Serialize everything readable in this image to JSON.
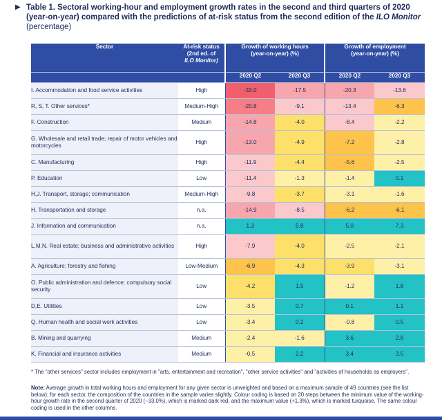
{
  "title": {
    "marker": "▶",
    "text_bold": "Table 1. Sectoral working-hour and employment growth rates in the second and third quarters of 2020 (year-on-year) compared with the predictions of at-risk status from the second edition of the ",
    "text_italic": "ILO Monitor",
    "text_plain": " (percentage)"
  },
  "header": {
    "sector": "Sector",
    "risk_line1": "At-risk status",
    "risk_line2": "(2nd ed. of",
    "risk_line3": "ILO Monitor)",
    "hours_line1": "Growth of working hours",
    "hours_line2": "(year-on-year) (%)",
    "emp_line1": "Growth of employment",
    "emp_line2": "(year-on-year) (%)",
    "q2": "2020 Q2",
    "q3": "2020 Q3"
  },
  "colors": {
    "header_bg": "#2f4da3",
    "dark_red": "#f0606c",
    "red": "#f47f86",
    "pink": "#f8a6ad",
    "light_pink": "#fbc9cc",
    "orange": "#fdc34a",
    "yellow": "#fde06a",
    "light_yellow": "#fff0a8",
    "light_teal": "#bfe9ea",
    "teal": "#23c2c4"
  },
  "rows": [
    {
      "sector": "I. Accommodation and food service activities",
      "risk": "High",
      "h2": "-33.0",
      "h3": "-17.5",
      "e2": "-20.3",
      "e3": "-13.6",
      "c": [
        "#f0606c",
        "#f8a6ad",
        "#f8a6ad",
        "#fbc9cc"
      ]
    },
    {
      "sector": "R, S, T. Other services*",
      "risk": "Medium-High",
      "h2": "-20.8",
      "h3": "-9.1",
      "e2": "-13.4",
      "e3": "-6.3",
      "c": [
        "#f47f86",
        "#fbc9cc",
        "#fbc9cc",
        "#fdc34a"
      ]
    },
    {
      "sector": "F. Construction",
      "risk": "Medium",
      "h2": "-14.8",
      "h3": "-4.0",
      "e2": "-8.4",
      "e3": "-2.2",
      "c": [
        "#f8a6ad",
        "#fde06a",
        "#fbc9cc",
        "#fff0a8"
      ]
    },
    {
      "sector": "G. Wholesale and retail trade; repair of motor vehicles and motorcycles",
      "risk": "High",
      "h2": "-13.0",
      "h3": "-4.9",
      "e2": "-7.2",
      "e3": "-2.8",
      "c": [
        "#f8a6ad",
        "#fde06a",
        "#fdc34a",
        "#fff0a8"
      ]
    },
    {
      "sector": "C. Manufacturing",
      "risk": "High",
      "h2": "-11.9",
      "h3": "-4.4",
      "e2": "-5.6",
      "e3": "-2.5",
      "c": [
        "#fbc9cc",
        "#fde06a",
        "#fdc34a",
        "#fff0a8"
      ]
    },
    {
      "sector": "P. Education",
      "risk": "Low",
      "h2": "-11.4",
      "h3": "-1.3",
      "e2": "-1.4",
      "e3": "0.1",
      "c": [
        "#fbc9cc",
        "#fff0a8",
        "#fff0a8",
        "#23c2c4"
      ]
    },
    {
      "sector": "H,J. Transport, storage; communication",
      "risk": "Medium-High",
      "h2": "-9.8",
      "h3": "-3.7",
      "e2": "-3.1",
      "e3": "-1.6",
      "c": [
        "#fbc9cc",
        "#fde06a",
        "#fff0a8",
        "#fff0a8"
      ]
    },
    {
      "sector": "H. Transportation and storage",
      "risk": "n.a.",
      "h2": "-14.9",
      "h3": "-8.5",
      "e2": "-6.2",
      "e3": "-6.1",
      "c": [
        "#f8a6ad",
        "#fbc9cc",
        "#fdc34a",
        "#fdc34a"
      ]
    },
    {
      "sector": "J. Information and communication",
      "risk": "n.a.",
      "h2": "1.3",
      "h3": "5.8",
      "e2": "5.0",
      "e3": "7.3",
      "c": [
        "#23c2c4",
        "#23c2c4",
        "#23c2c4",
        "#23c2c4"
      ]
    },
    {
      "sector": "L,M,N. Real estate; business and administrative activities",
      "risk": "High",
      "h2": "-7.9",
      "h3": "-4.0",
      "e2": "-2.5",
      "e3": "-2.1",
      "c": [
        "#fbc9cc",
        "#fde06a",
        "#fff0a8",
        "#fff0a8"
      ]
    },
    {
      "sector": "A. Agriculture; forestry and fishing",
      "risk": "Low-Medium",
      "h2": "-6.9",
      "h3": "-4.3",
      "e2": "-3.9",
      "e3": "-3.1",
      "c": [
        "#fdc34a",
        "#fde06a",
        "#fde06a",
        "#fff0a8"
      ]
    },
    {
      "sector": "O. Public administration and defence; compulsory social security",
      "risk": "Low",
      "h2": "-4.2",
      "h3": "1.5",
      "e2": "-1.2",
      "e3": "1.8",
      "c": [
        "#fde06a",
        "#23c2c4",
        "#fff0a8",
        "#23c2c4"
      ]
    },
    {
      "sector": "D,E. Utilities",
      "risk": "Low",
      "h2": "-3.5",
      "h3": "0.7",
      "e2": "0.1",
      "e3": "1.1",
      "c": [
        "#fff0a8",
        "#23c2c4",
        "#23c2c4",
        "#23c2c4"
      ]
    },
    {
      "sector": "Q. Human health and social work activities",
      "risk": "Low",
      "h2": "-3.4",
      "h3": "0.2",
      "e2": "-0.8",
      "e3": "0.5",
      "c": [
        "#fff0a8",
        "#23c2c4",
        "#fff0a8",
        "#23c2c4"
      ]
    },
    {
      "sector": "B. Mining and quarrying",
      "risk": "Medium",
      "h2": "-2.4",
      "h3": "-1.6",
      "e2": "3.6",
      "e3": "2.8",
      "c": [
        "#fff0a8",
        "#fff0a8",
        "#23c2c4",
        "#23c2c4"
      ]
    },
    {
      "sector": "K. Financial and insurance activities",
      "risk": "Medium",
      "h2": "-0.5",
      "h3": "2.2",
      "e2": "3.4",
      "e3": "3.5",
      "c": [
        "#fff0a8",
        "#23c2c4",
        "#23c2c4",
        "#23c2c4"
      ]
    }
  ],
  "footnote": "* The \"other services\" sector includes employment in \"arts, entertainment and recreation\", \"other service activities\" and \"activities of households as employers\".",
  "note_label": "Note:",
  "note_text": " Average growth in total working hours and employment for any given sector is unweighted and based on a maximum sample of 49 countries (see the list below); for each sector, the composition of the countries in the sample varies slightly. Colour coding is based on 20 steps between the minimum value of the working-hour growth rate in the second quarter of 2020 (−33.0%), which is marked dark red, and the maximum value (+1.3%), which is marked turquoise. The same colour coding is used in the other columns."
}
